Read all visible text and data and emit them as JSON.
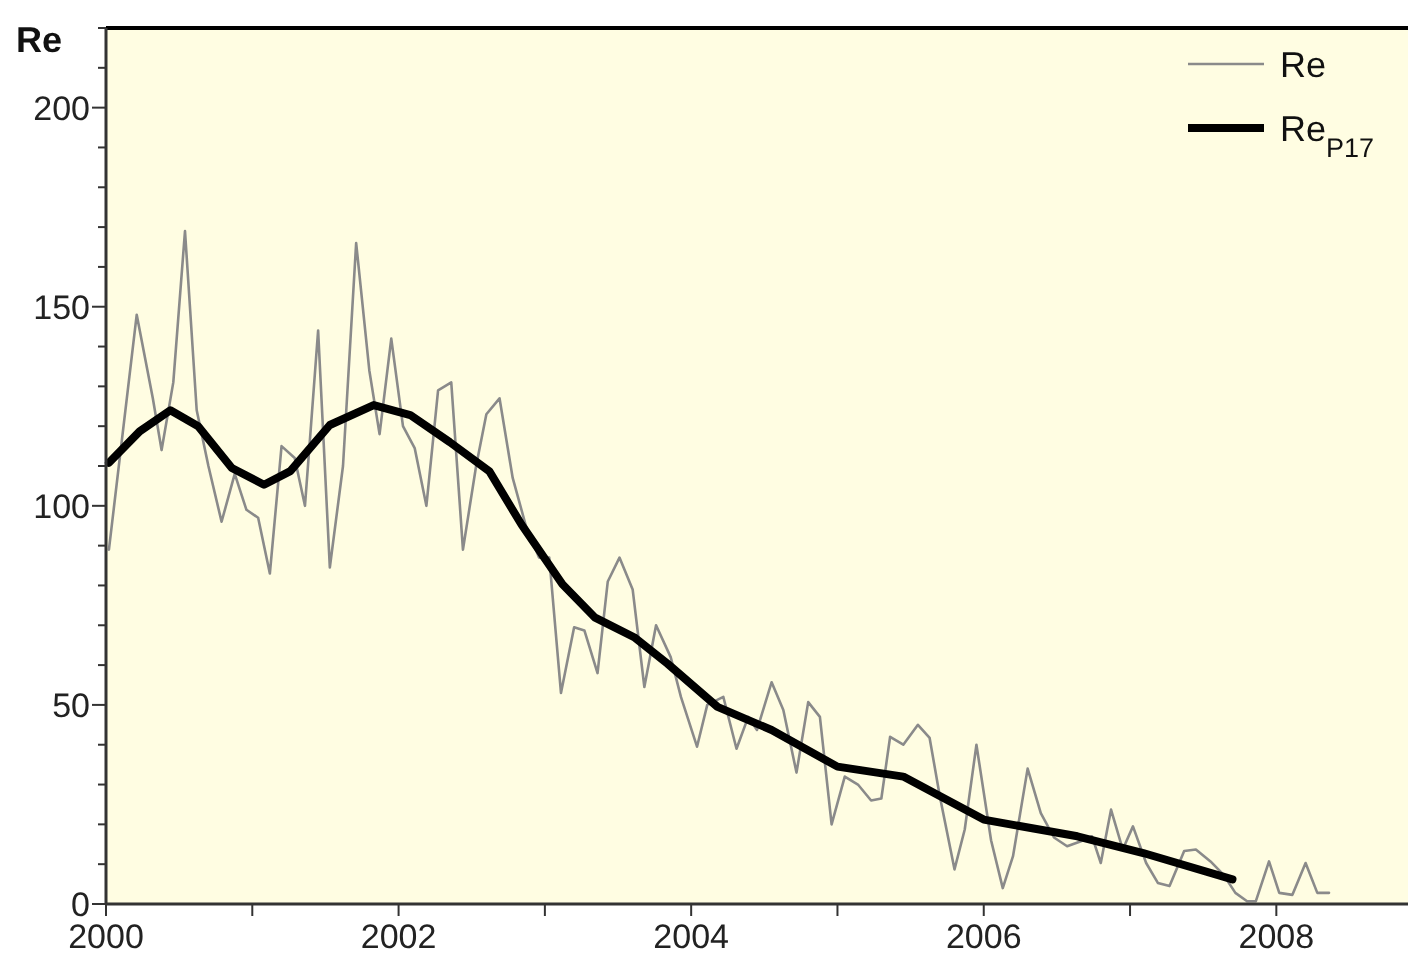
{
  "chart_data": {
    "type": "line",
    "ylabel": "Re",
    "xlim": [
      2000,
      2008.9
    ],
    "ylim": [
      0,
      220
    ],
    "xticks": [
      2000,
      {
        "value": 2001,
        "label": null
      },
      2002,
      {
        "value": 2003,
        "label": null
      },
      2004,
      {
        "value": 2005,
        "label": null
      },
      2006,
      {
        "value": 2007,
        "label": null
      },
      2008
    ],
    "yticks": [
      0,
      {
        "value": 10,
        "label": null
      },
      {
        "value": 20,
        "label": null
      },
      {
        "value": 30,
        "label": null
      },
      {
        "value": 40,
        "label": null
      },
      50,
      {
        "value": 60,
        "label": null
      },
      {
        "value": 70,
        "label": null
      },
      {
        "value": 80,
        "label": null
      },
      {
        "value": 90,
        "label": null
      },
      100,
      {
        "value": 110,
        "label": null
      },
      {
        "value": 120,
        "label": null
      },
      {
        "value": 130,
        "label": null
      },
      {
        "value": 140,
        "label": null
      },
      150,
      {
        "value": 160,
        "label": null
      },
      {
        "value": 170,
        "label": null
      },
      {
        "value": 180,
        "label": null
      },
      {
        "value": 190,
        "label": null
      },
      200,
      {
        "value": 210,
        "label": null
      },
      {
        "value": 220,
        "label": null
      }
    ],
    "grid": false,
    "legend": "top right",
    "marker": "none",
    "line_style": "solid",
    "series": [
      {
        "name": "Re",
        "color": "#8a8a8a",
        "x": [
          2000.02,
          2000.21,
          2000.32,
          2000.38,
          2000.46,
          2000.54,
          2000.62,
          2000.7,
          2000.79,
          2000.88,
          2000.96,
          2001.04,
          2001.12,
          2001.2,
          2001.29,
          2001.36,
          2001.45,
          2001.53,
          2001.62,
          2001.71,
          2001.8,
          2001.87,
          2001.95,
          2002.03,
          2002.11,
          2002.19,
          2002.27,
          2002.36,
          2002.44,
          2002.53,
          2002.6,
          2002.69,
          2002.78,
          2002.87,
          2002.96,
          2003.03,
          2003.11,
          2003.2,
          2003.27,
          2003.36,
          2003.43,
          2003.51,
          2003.6,
          2003.68,
          2003.76,
          2003.86,
          2003.93,
          2004.04,
          2004.11,
          2004.22,
          2004.31,
          2004.39,
          2004.45,
          2004.55,
          2004.63,
          2004.72,
          2004.8,
          2004.88,
          2004.96,
          2005.05,
          2005.14,
          2005.23,
          2005.3,
          2005.36,
          2005.45,
          2005.55,
          2005.63,
          2005.7,
          2005.8,
          2005.87,
          2005.95,
          2006.05,
          2006.13,
          2006.2,
          2006.3,
          2006.39,
          2006.48,
          2006.57,
          2006.66,
          2006.74,
          2006.8,
          2006.87,
          2006.95,
          2007.02,
          2007.11,
          2007.19,
          2007.27,
          2007.37,
          2007.45,
          2007.55,
          2007.64,
          2007.72,
          2007.8,
          2007.86,
          2007.95,
          2008.02,
          2008.11,
          2008.2,
          2008.28,
          2008.36
        ],
        "values": [
          89,
          148,
          127,
          114,
          131,
          169,
          124,
          110,
          96,
          108,
          99,
          97,
          83,
          115,
          112,
          100,
          144,
          84.5,
          110,
          166,
          134,
          118,
          142,
          120,
          114.5,
          100,
          129,
          131,
          89,
          110,
          123,
          127,
          107,
          95,
          87,
          87,
          53,
          69.5,
          68.7,
          58,
          81,
          87,
          79,
          54.5,
          70,
          62,
          52,
          39.5,
          50,
          52,
          39,
          47,
          43.7,
          55.7,
          48.7,
          33,
          50.7,
          47,
          20,
          32,
          30,
          26,
          26.5,
          42,
          40,
          45,
          41.7,
          27,
          8.7,
          18.7,
          40,
          16,
          4,
          12,
          34,
          22.8,
          16.7,
          14.5,
          15.7,
          17,
          10.3,
          23.7,
          13.7,
          19.5,
          10.3,
          5.3,
          4.5,
          13.3,
          13.7,
          10.7,
          7.3,
          2.8,
          0.7,
          0.7,
          10.7,
          2.8,
          2.3,
          10.3,
          2.8,
          2.8
        ]
      },
      {
        "name": "Re$_{P17}$",
        "color": "#000000",
        "x": [
          2000.02,
          2000.23,
          2000.44,
          2000.63,
          2000.86,
          2001.08,
          2001.26,
          2001.53,
          2001.83,
          2002.08,
          2002.35,
          2002.62,
          2002.84,
          2003.12,
          2003.34,
          2003.61,
          2003.84,
          2004.18,
          2004.55,
          2005,
          2005.45,
          2006,
          2006.64,
          2007.09,
          2007.7
        ],
        "values": [
          110.8,
          118.7,
          124,
          120,
          109.5,
          105.3,
          108.7,
          120.3,
          125.3,
          122.8,
          116,
          108.7,
          95.3,
          80.3,
          72,
          67,
          60.3,
          49.5,
          43.7,
          34.5,
          32,
          21.2,
          17,
          12.8,
          6.2
        ]
      }
    ]
  }
}
